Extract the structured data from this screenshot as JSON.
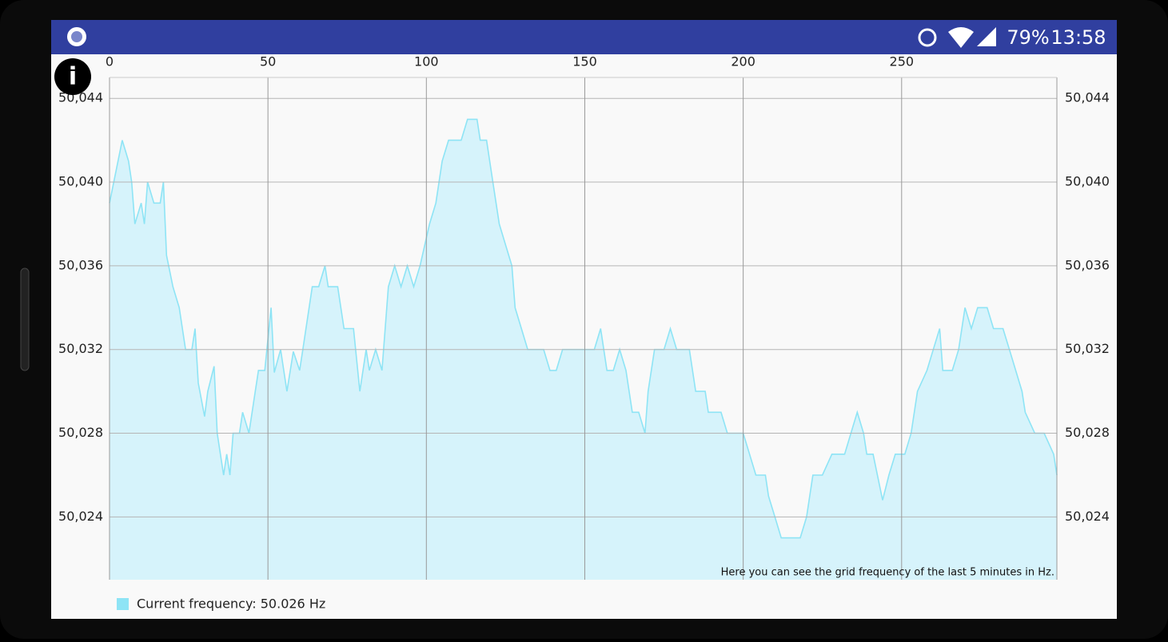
{
  "status_bar": {
    "battery": "79%",
    "time": "13:58"
  },
  "info_icon": "i",
  "chart_data": {
    "type": "area",
    "annotation": "Here you can see the grid frequency of the last 5 minutes in Hz.",
    "legend": "bottom-left",
    "grid": true,
    "xlim": [
      0,
      299
    ],
    "xticks": [
      0,
      50,
      100,
      150,
      200,
      250
    ],
    "ylim": [
      50.021,
      50.045
    ],
    "yticks": [
      {
        "value": 50.024,
        "label": "50,024"
      },
      {
        "value": 50.028,
        "label": "50,028"
      },
      {
        "value": 50.032,
        "label": "50,032"
      },
      {
        "value": 50.036,
        "label": "50,036"
      },
      {
        "value": 50.04,
        "label": "50,040"
      },
      {
        "value": 50.044,
        "label": "50,044"
      }
    ],
    "x": [
      0,
      4,
      6,
      7,
      8,
      10,
      11,
      12,
      14,
      16,
      17,
      18,
      20,
      22,
      24,
      26,
      27,
      28,
      30,
      31,
      33,
      34,
      36,
      37,
      38,
      39,
      41,
      42,
      44,
      46,
      47,
      49,
      51,
      52,
      54,
      56,
      58,
      60,
      61,
      64,
      66,
      68,
      69,
      72,
      74,
      77,
      79,
      81,
      82,
      84,
      86,
      88,
      90,
      92,
      94,
      96,
      98,
      101,
      103,
      105,
      107,
      111,
      113,
      116,
      117,
      119,
      121,
      123,
      125,
      127,
      128,
      130,
      132,
      137,
      139,
      141,
      143,
      153,
      155,
      157,
      159,
      161,
      163,
      165,
      167,
      169,
      170,
      172,
      175,
      177,
      179,
      183,
      185,
      188,
      189,
      193,
      195,
      200,
      202,
      204,
      207,
      208,
      210,
      212,
      218,
      220,
      222,
      225,
      228,
      232,
      234,
      236,
      238,
      239,
      241,
      244,
      246,
      248,
      251,
      253,
      255,
      258,
      260,
      262,
      263,
      266,
      268,
      270,
      272,
      274,
      277,
      279,
      282,
      284,
      286,
      288,
      289,
      292,
      295,
      298,
      299
    ],
    "series": [
      {
        "name": "Current frequency: 50.026 Hz",
        "color": "#8ee4f5",
        "fill": "#d6f3fb",
        "values": [
          50.039,
          50.042,
          50.041,
          50.04,
          50.038,
          50.039,
          50.038,
          50.04,
          50.039,
          50.039,
          50.04,
          50.0365,
          50.035,
          50.034,
          50.032,
          50.032,
          50.033,
          50.0304,
          50.0288,
          50.03,
          50.0312,
          50.028,
          50.026,
          50.027,
          50.026,
          50.028,
          50.028,
          50.029,
          50.028,
          50.03,
          50.031,
          50.031,
          50.034,
          50.0309,
          50.032,
          50.03,
          50.0319,
          50.031,
          50.032,
          50.035,
          50.035,
          50.036,
          50.035,
          50.035,
          50.033,
          50.033,
          50.03,
          50.032,
          50.031,
          50.032,
          50.031,
          50.035,
          50.036,
          50.035,
          50.036,
          50.035,
          50.036,
          50.038,
          50.039,
          50.041,
          50.042,
          50.042,
          50.043,
          50.043,
          50.042,
          50.042,
          50.04,
          50.038,
          50.037,
          50.036,
          50.034,
          50.033,
          50.032,
          50.032,
          50.031,
          50.031,
          50.032,
          50.032,
          50.033,
          50.031,
          50.031,
          50.032,
          50.031,
          50.029,
          50.029,
          50.028,
          50.03,
          50.032,
          50.032,
          50.033,
          50.032,
          50.032,
          50.03,
          50.03,
          50.029,
          50.029,
          50.028,
          50.028,
          50.027,
          50.026,
          50.026,
          50.025,
          50.024,
          50.023,
          50.023,
          50.024,
          50.026,
          50.026,
          50.027,
          50.027,
          50.028,
          50.029,
          50.028,
          50.027,
          50.027,
          50.0248,
          50.026,
          50.027,
          50.027,
          50.028,
          50.03,
          50.031,
          50.032,
          50.033,
          50.031,
          50.031,
          50.032,
          50.034,
          50.033,
          50.034,
          50.034,
          50.033,
          50.033,
          50.032,
          50.031,
          50.03,
          50.029,
          50.028,
          50.028,
          50.027,
          50.026
        ]
      }
    ]
  }
}
